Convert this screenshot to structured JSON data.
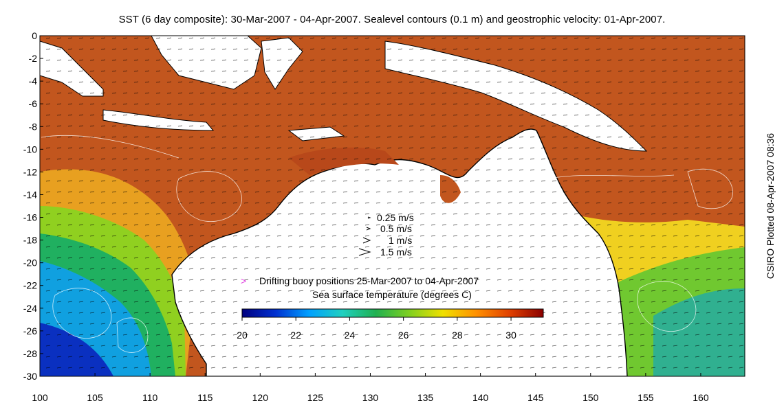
{
  "title": "SST (6 day composite): 30-Mar-2007 - 04-Apr-2007. Sealevel contours (0.1 m) and geostrophic velocity: 01-Apr-2007.",
  "credit": "CSIRO Plotted 08-Apr-2007 08:36",
  "axes": {
    "x_ticks": [
      100,
      105,
      110,
      115,
      120,
      125,
      130,
      135,
      140,
      145,
      150,
      155,
      160
    ],
    "y_ticks": [
      0,
      -2,
      -4,
      -6,
      -8,
      -10,
      -12,
      -14,
      -16,
      -18,
      -20,
      -22,
      -24,
      -26,
      -28,
      -30
    ],
    "xlim": [
      100,
      164
    ],
    "ylim": [
      -30,
      0
    ]
  },
  "velocity_key": [
    "0.25 m/s",
    "0.5 m/s",
    "1 m/s",
    "1.5 m/s"
  ],
  "buoy_legend": {
    "symbol": ">",
    "label": "Drifting buoy positions 25-Mar-2007 to 04-Apr-2007",
    "color": "#e040e0"
  },
  "colorbar": {
    "label": "Sea surface temperature (degrees C)",
    "ticks": [
      20,
      22,
      24,
      26,
      28,
      30
    ],
    "range": [
      20,
      31.2
    ],
    "colors": [
      "#00007f",
      "#0030d0",
      "#00a0ff",
      "#20d0c0",
      "#20b050",
      "#80d020",
      "#f0e000",
      "#ff9000",
      "#e04000",
      "#8b0000"
    ]
  },
  "colors": {
    "land": "#ffffff",
    "coast": "#000000",
    "sealevel_contours": "#ffffff",
    "vectors": "#000000",
    "sst_warm": "#c0501a",
    "sst_cool": "#1a3ad0"
  }
}
